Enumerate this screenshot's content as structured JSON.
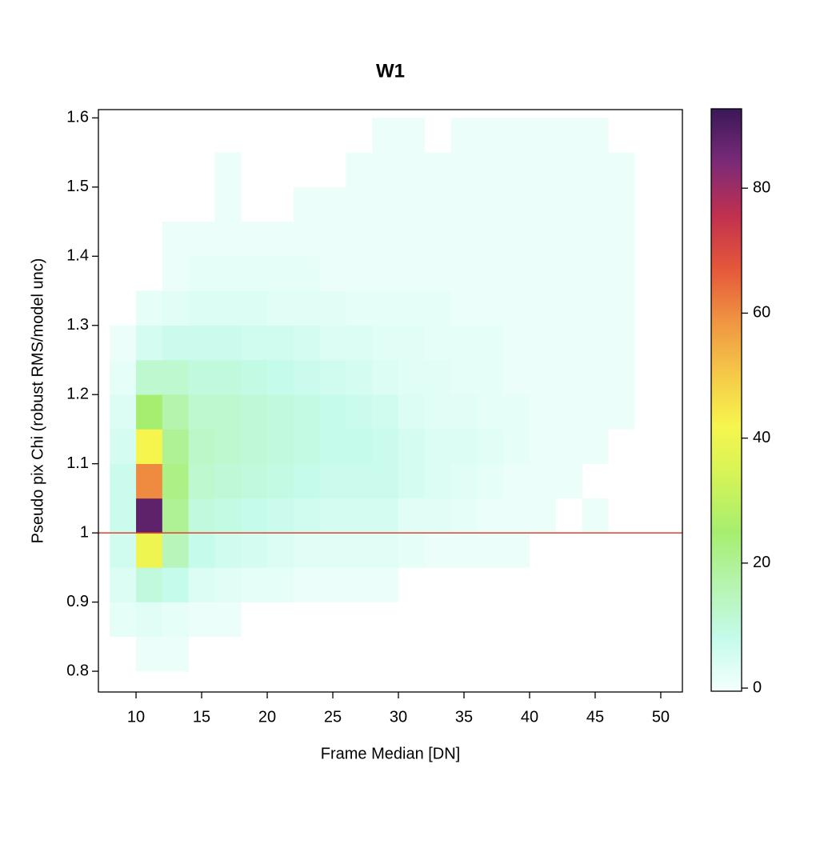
{
  "chart_data": {
    "type": "heatmap2d",
    "title": "W1",
    "x_label": "Frame Median [DN]",
    "y_label": "Pseudo pix Chi (robust RMS/model unc)",
    "xlim": [
      7.13,
      51.65
    ],
    "xticks": [
      10,
      15,
      20,
      25,
      30,
      35,
      40,
      45,
      50
    ],
    "ylim": [
      0.77,
      1.612
    ],
    "yticks": [
      0.8,
      0.9,
      1.0,
      1.1,
      1.2,
      1.3,
      1.4,
      1.5,
      1.6
    ],
    "x_edges": [
      8,
      10,
      12,
      14,
      16,
      18,
      20,
      22,
      24,
      26,
      28,
      30,
      32,
      34,
      36,
      38,
      40,
      42,
      44,
      46,
      48,
      50
    ],
    "y_edges": [
      0.8,
      0.85,
      0.9,
      0.95,
      1.0,
      1.05,
      1.1,
      1.15,
      1.2,
      1.25,
      1.3,
      1.35,
      1.4,
      1.45,
      1.5,
      1.55,
      1.6
    ],
    "counts": [
      [
        0,
        1,
        1,
        0,
        0,
        0,
        0,
        0,
        0,
        0,
        0,
        0,
        0,
        0,
        0,
        0,
        0,
        0,
        0,
        0,
        0
      ],
      [
        2,
        3,
        2,
        1,
        1,
        0,
        0,
        0,
        0,
        0,
        0,
        0,
        0,
        0,
        0,
        0,
        0,
        0,
        0,
        0,
        0
      ],
      [
        4,
        10,
        8,
        4,
        3,
        2,
        2,
        1,
        1,
        1,
        1,
        0,
        0,
        0,
        0,
        0,
        0,
        0,
        0,
        0,
        0
      ],
      [
        6,
        40,
        15,
        8,
        6,
        5,
        4,
        3,
        3,
        3,
        3,
        2,
        1,
        1,
        1,
        1,
        0,
        0,
        0,
        0,
        0
      ],
      [
        7,
        88,
        20,
        10,
        9,
        8,
        7,
        6,
        5,
        5,
        5,
        3,
        3,
        2,
        1,
        1,
        1,
        0,
        1,
        0,
        0
      ],
      [
        7,
        60,
        22,
        12,
        11,
        10,
        9,
        8,
        7,
        7,
        7,
        5,
        4,
        3,
        2,
        1,
        1,
        1,
        0,
        0,
        0
      ],
      [
        5,
        42,
        20,
        13,
        12,
        11,
        10,
        9,
        8,
        8,
        7,
        5,
        4,
        4,
        3,
        2,
        1,
        1,
        1,
        0,
        0
      ],
      [
        4,
        25,
        17,
        12,
        12,
        11,
        10,
        9,
        8,
        7,
        6,
        4,
        3,
        3,
        2,
        2,
        1,
        1,
        1,
        1,
        0
      ],
      [
        2,
        12,
        12,
        10,
        10,
        9,
        8,
        7,
        6,
        5,
        4,
        3,
        3,
        2,
        2,
        1,
        1,
        1,
        1,
        1,
        0
      ],
      [
        1,
        5,
        7,
        7,
        7,
        6,
        6,
        5,
        4,
        4,
        3,
        3,
        2,
        2,
        2,
        1,
        1,
        1,
        1,
        1,
        0
      ],
      [
        0,
        2,
        3,
        4,
        4,
        4,
        3,
        3,
        3,
        2,
        2,
        2,
        2,
        1,
        1,
        1,
        1,
        1,
        1,
        1,
        0
      ],
      [
        0,
        0,
        1,
        2,
        2,
        2,
        2,
        2,
        1,
        1,
        1,
        1,
        1,
        1,
        1,
        1,
        1,
        1,
        1,
        1,
        0
      ],
      [
        0,
        0,
        1,
        1,
        1,
        1,
        1,
        1,
        1,
        1,
        1,
        1,
        1,
        1,
        1,
        1,
        1,
        1,
        1,
        1,
        0
      ],
      [
        0,
        0,
        0,
        0,
        1,
        0,
        0,
        1,
        1,
        1,
        1,
        1,
        1,
        1,
        1,
        1,
        1,
        1,
        1,
        1,
        0
      ],
      [
        0,
        0,
        0,
        0,
        1,
        0,
        0,
        0,
        0,
        1,
        1,
        1,
        1,
        1,
        1,
        1,
        1,
        1,
        1,
        1,
        0
      ],
      [
        0,
        0,
        0,
        0,
        0,
        0,
        0,
        0,
        0,
        0,
        1,
        1,
        0,
        1,
        1,
        1,
        1,
        1,
        1,
        0,
        0
      ]
    ],
    "zlim": [
      -0.5,
      92.7
    ],
    "zticks": [
      0,
      20,
      40,
      60,
      80
    ],
    "colors": [
      "#f4fffd",
      "#c4fbeb",
      "#b6f4b0",
      "#a6ee70",
      "#d2f358",
      "#f6f64e",
      "#f5c848",
      "#ef9442",
      "#e5563a",
      "#c03050",
      "#7a2a78",
      "#3a1858"
    ],
    "hline": 1.0,
    "hline_color": "#e0422c"
  }
}
